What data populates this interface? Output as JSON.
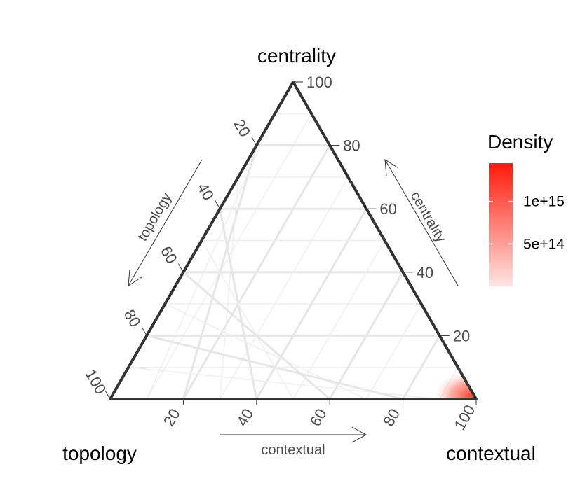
{
  "chart_data": {
    "type": "ternary-density",
    "axes": {
      "top": "centrality",
      "left": "topology",
      "right": "contextual"
    },
    "arrow_labels": {
      "left": "topology",
      "right": "centrality",
      "bottom": "contextual"
    },
    "ticks": [
      "20",
      "40",
      "60",
      "80",
      "100"
    ],
    "tick_values": [
      20,
      40,
      60,
      80,
      100
    ],
    "grid": true,
    "density_hotspot": {
      "topology": 1,
      "centrality": 1,
      "contextual": 98
    },
    "legend": {
      "title": "Density",
      "labels": [
        "1e+15",
        "5e+14"
      ],
      "values": [
        1000000000000000.0,
        500000000000000.0
      ],
      "max": 1450000000000000.0,
      "color_low": "#fde0dd",
      "color_high": "#ff0000"
    }
  }
}
